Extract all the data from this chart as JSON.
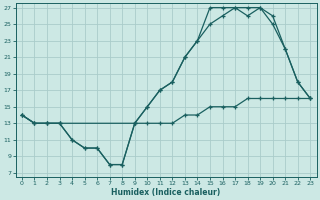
{
  "xlabel": "Humidex (Indice chaleur)",
  "bg_color": "#cce8e4",
  "line_color": "#1a6060",
  "grid_color": "#aaccca",
  "xlim": [
    -0.5,
    23.5
  ],
  "ylim": [
    6.5,
    27.5
  ],
  "xticks": [
    0,
    1,
    2,
    3,
    4,
    5,
    6,
    7,
    8,
    9,
    10,
    11,
    12,
    13,
    14,
    15,
    16,
    17,
    18,
    19,
    20,
    21,
    22,
    23
  ],
  "yticks": [
    7,
    9,
    11,
    13,
    15,
    17,
    19,
    21,
    23,
    25,
    27
  ],
  "line1_x": [
    0,
    1,
    2,
    3,
    4,
    5,
    6,
    7,
    8,
    9,
    10,
    11,
    12,
    13,
    14,
    15,
    16,
    17,
    18,
    19,
    20,
    21,
    22,
    23
  ],
  "line1_y": [
    14,
    13,
    13,
    13,
    11,
    10,
    10,
    8,
    8,
    13,
    15,
    17,
    18,
    21,
    23,
    27,
    27,
    27,
    26,
    27,
    26,
    22,
    18,
    16
  ],
  "line2_x": [
    0,
    1,
    2,
    3,
    4,
    5,
    6,
    7,
    8,
    9,
    10,
    11,
    12,
    13,
    14,
    15,
    16,
    17,
    18,
    19,
    20,
    21,
    22,
    23
  ],
  "line2_y": [
    14,
    13,
    13,
    13,
    11,
    10,
    10,
    8,
    8,
    13,
    15,
    17,
    18,
    21,
    23,
    25,
    26,
    27,
    27,
    27,
    25,
    22,
    18,
    16
  ],
  "line3_x": [
    0,
    1,
    2,
    3,
    9,
    10,
    11,
    12,
    13,
    14,
    15,
    16,
    17,
    18,
    19,
    20,
    21,
    22,
    23
  ],
  "line3_y": [
    14,
    13,
    13,
    13,
    13,
    13,
    13,
    13,
    14,
    14,
    15,
    15,
    15,
    16,
    16,
    16,
    16,
    16,
    16
  ]
}
